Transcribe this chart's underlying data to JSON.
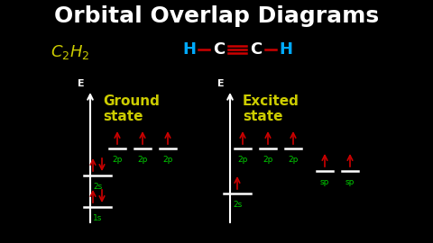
{
  "title": "Orbital Overlap Diagrams",
  "bg_color": "#000000",
  "title_color": "#ffffff",
  "title_fontsize": 18,
  "formula_color": "#cccc00",
  "label_color": "#cccc00",
  "line_color": "#ffffff",
  "arrow_color": "#cc0000",
  "orbital_label_color": "#00cc00",
  "axis_color": "#ffffff",
  "E_color": "#ffffff",
  "struct_H_color": "#00aaff",
  "struct_C_color": "#ffffff",
  "bond_color": "#cc0000",
  "ground_label": "Ground",
  "ground_label2": "state",
  "excited_label": "Excited",
  "excited_label2": "state"
}
